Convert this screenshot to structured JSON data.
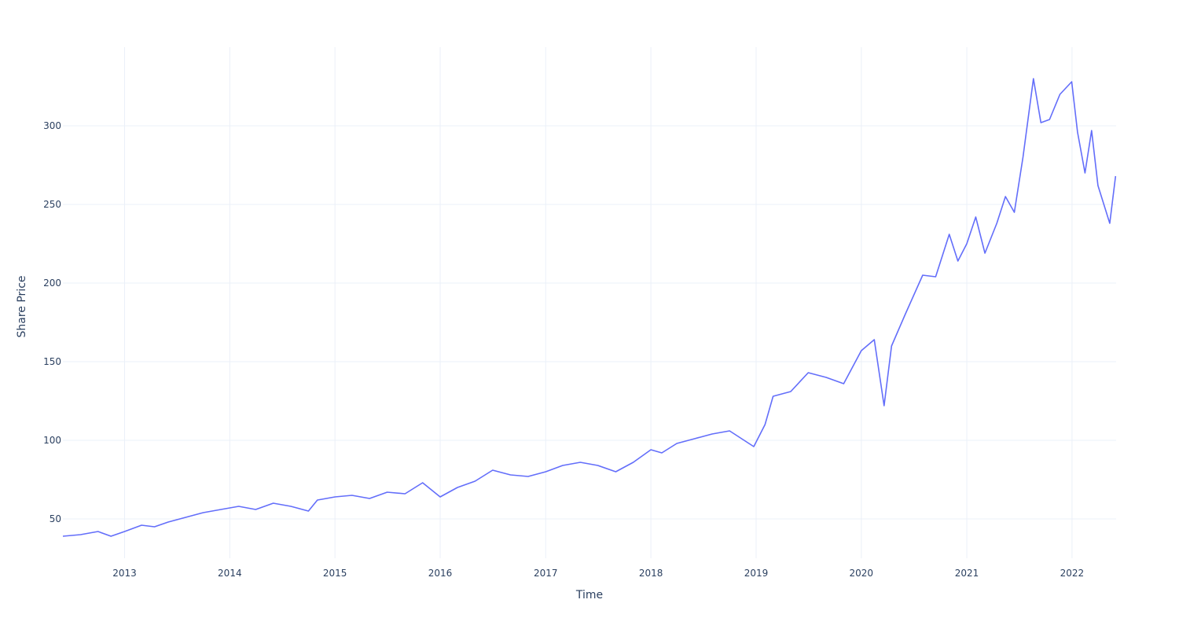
{
  "chart_data": {
    "type": "line",
    "title": "",
    "xlabel": "Time",
    "ylabel": "Share Price",
    "xlim": [
      "2012-06-01",
      "2022-06-03"
    ],
    "ylim": [
      25,
      350
    ],
    "x_ticks": [
      "2013",
      "2014",
      "2015",
      "2016",
      "2017",
      "2018",
      "2019",
      "2020",
      "2021",
      "2022"
    ],
    "y_ticks": [
      50,
      100,
      150,
      200,
      250,
      300
    ],
    "grid": true,
    "legend": "none",
    "line_color": "#636efa",
    "series": [
      {
        "x": [
          "2012-06-01",
          "2012-08-01",
          "2012-10-01",
          "2012-11-15",
          "2013-01-01",
          "2013-03-01",
          "2013-04-15",
          "2013-06-01",
          "2013-08-01",
          "2013-10-01",
          "2013-12-01",
          "2014-02-01",
          "2014-04-01",
          "2014-06-01",
          "2014-08-01",
          "2014-10-01",
          "2014-11-01",
          "2015-01-01",
          "2015-03-01",
          "2015-05-01",
          "2015-07-01",
          "2015-09-01",
          "2015-11-01",
          "2016-01-01",
          "2016-03-01",
          "2016-05-01",
          "2016-07-01",
          "2016-09-01",
          "2016-11-01",
          "2017-01-01",
          "2017-03-01",
          "2017-05-01",
          "2017-07-01",
          "2017-09-01",
          "2017-11-01",
          "2018-01-01",
          "2018-02-08",
          "2018-04-01",
          "2018-06-01",
          "2018-08-01",
          "2018-10-01",
          "2018-12-24",
          "2019-02-01",
          "2019-03-01",
          "2019-05-01",
          "2019-07-01",
          "2019-09-01",
          "2019-11-01",
          "2020-01-01",
          "2020-02-15",
          "2020-03-20",
          "2020-04-15",
          "2020-06-01",
          "2020-08-01",
          "2020-09-15",
          "2020-11-01",
          "2020-12-01",
          "2021-01-01",
          "2021-02-01",
          "2021-03-05",
          "2021-04-15",
          "2021-05-15",
          "2021-06-15",
          "2021-07-15",
          "2021-08-20",
          "2021-09-15",
          "2021-10-15",
          "2021-11-20",
          "2021-12-31",
          "2022-01-20",
          "2022-02-15",
          "2022-03-10",
          "2022-04-01",
          "2022-05-12",
          "2022-06-01"
        ],
        "y": [
          39,
          40,
          42,
          39,
          42,
          46,
          45,
          48,
          51,
          54,
          56,
          58,
          56,
          60,
          58,
          55,
          62,
          64,
          65,
          63,
          67,
          66,
          73,
          64,
          70,
          74,
          81,
          78,
          77,
          80,
          84,
          86,
          84,
          80,
          86,
          94,
          92,
          98,
          101,
          104,
          106,
          96,
          110,
          128,
          131,
          143,
          140,
          136,
          157,
          164,
          122,
          160,
          180,
          205,
          204,
          231,
          214,
          225,
          242,
          219,
          238,
          255,
          245,
          280,
          330,
          302,
          304,
          320,
          328,
          296,
          270,
          297,
          262,
          238,
          268
        ]
      }
    ]
  }
}
